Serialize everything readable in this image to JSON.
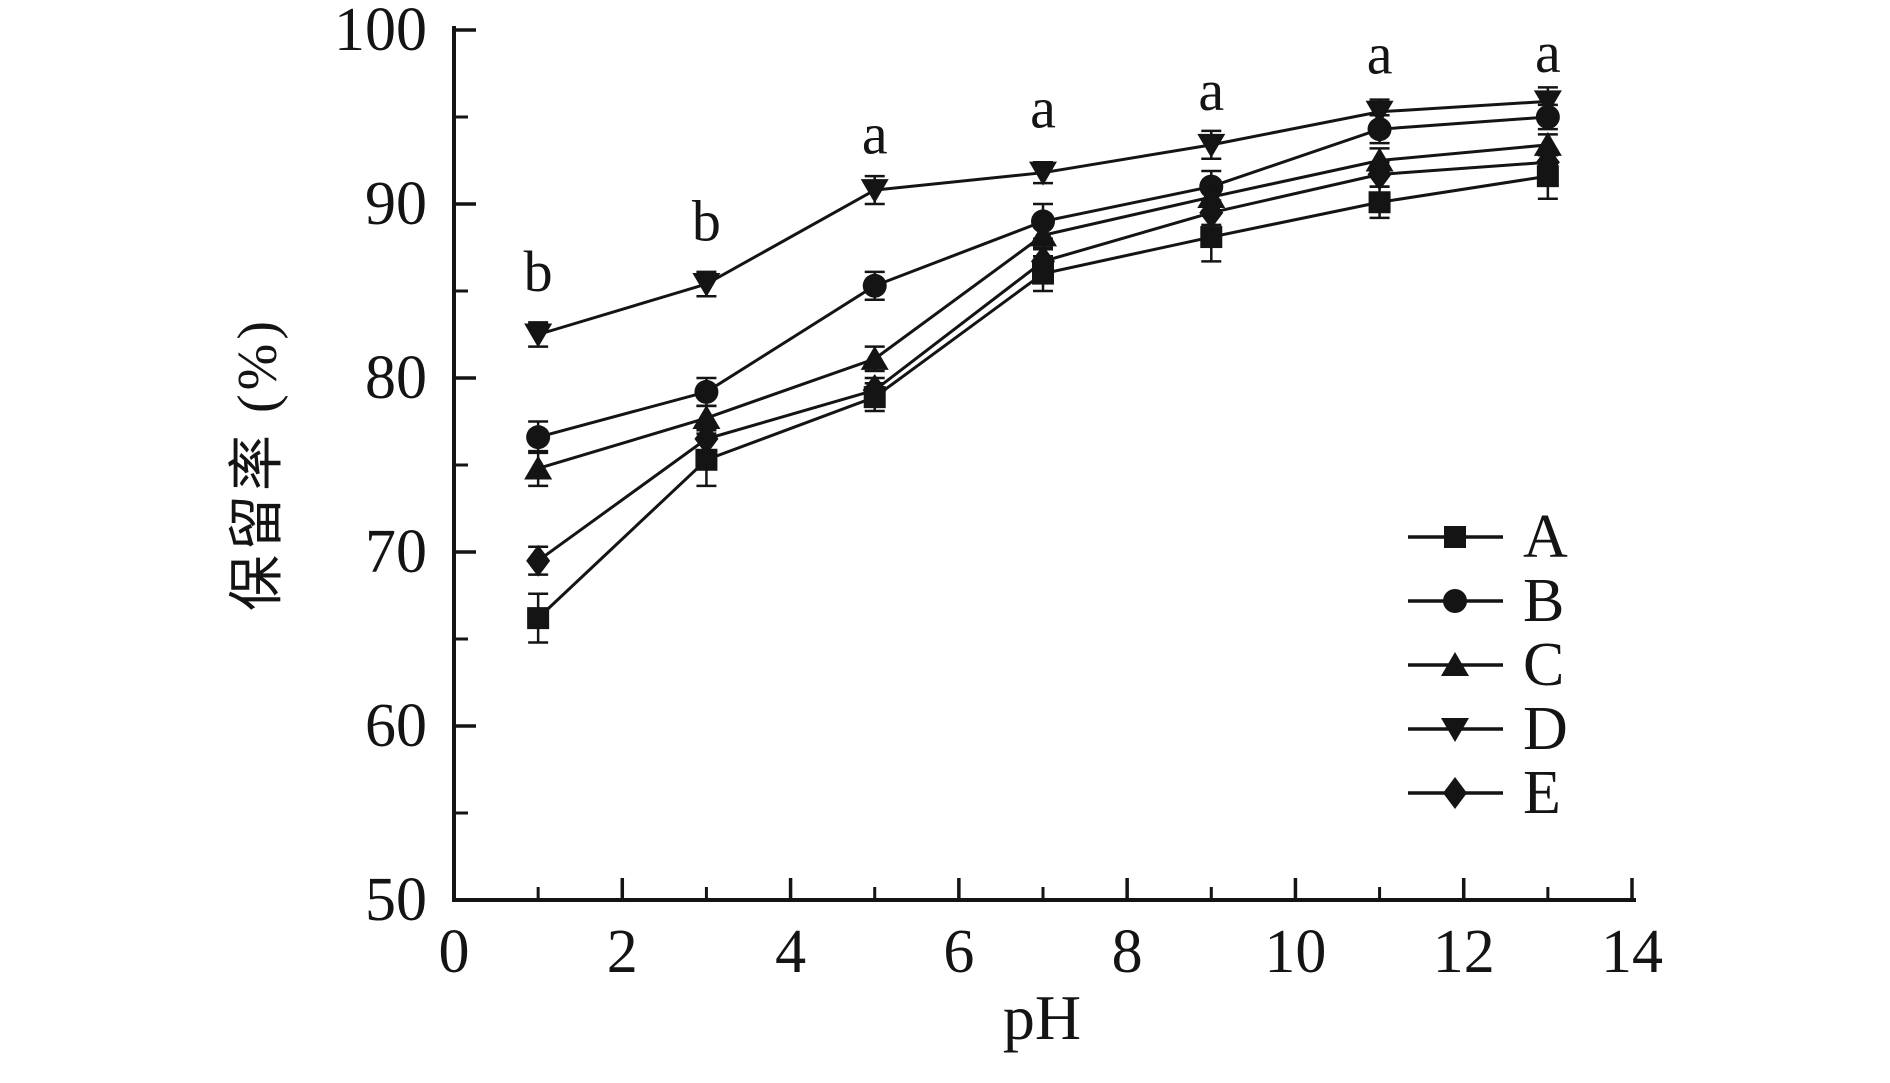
{
  "figure": {
    "background": "#ffffff",
    "ink": "#141414"
  },
  "chart_data": {
    "type": "line",
    "title": "",
    "xlabel": "pH",
    "ylabel": "保留率 (%)",
    "xlim": [
      0,
      14
    ],
    "ylim": [
      50,
      100
    ],
    "grid": false,
    "x_major_ticks": [
      0,
      2,
      4,
      6,
      8,
      10,
      12,
      14
    ],
    "x_minor_ticks": [
      1,
      3,
      5,
      7,
      9,
      11,
      13
    ],
    "y_major_ticks": [
      50,
      60,
      70,
      80,
      90,
      100
    ],
    "y_minor_ticks": [
      55,
      65,
      75,
      85,
      95
    ],
    "x": [
      1,
      3,
      5,
      7,
      9,
      11,
      13
    ],
    "series": [
      {
        "name": "A",
        "marker": "square",
        "values": [
          66.2,
          75.3,
          78.9,
          86.0,
          88.1,
          90.1,
          91.6
        ],
        "errors": [
          1.4,
          1.5,
          0.8,
          1.0,
          1.4,
          0.9,
          1.3
        ]
      },
      {
        "name": "B",
        "marker": "circle",
        "values": [
          76.6,
          79.2,
          85.3,
          89.0,
          91.0,
          94.3,
          95.0
        ],
        "errors": [
          0.9,
          0.8,
          0.8,
          1.0,
          0.9,
          0.8,
          0.7
        ]
      },
      {
        "name": "C",
        "marker": "triangle-up",
        "values": [
          74.8,
          77.7,
          81.1,
          88.2,
          90.4,
          92.5,
          93.4
        ],
        "errors": [
          1.0,
          0.7,
          0.7,
          0.7,
          0.8,
          0.7,
          0.6
        ]
      },
      {
        "name": "D",
        "marker": "triangle-down",
        "values": [
          82.5,
          85.4,
          90.8,
          91.8,
          93.4,
          95.3,
          95.9
        ],
        "errors": [
          0.7,
          0.7,
          0.8,
          0.6,
          0.8,
          0.7,
          0.8
        ]
      },
      {
        "name": "E",
        "marker": "diamond",
        "values": [
          69.5,
          76.5,
          79.3,
          86.7,
          89.5,
          91.7,
          92.4
        ],
        "errors": [
          0.8,
          0.7,
          0.7,
          0.7,
          0.7,
          0.7,
          0.6
        ]
      }
    ],
    "annotations": [
      {
        "text": "b",
        "x": 1,
        "y": 85.0
      },
      {
        "text": "b",
        "x": 3,
        "y": 87.9
      },
      {
        "text": "a",
        "x": 5,
        "y": 92.9
      },
      {
        "text": "a",
        "x": 7,
        "y": 94.4
      },
      {
        "text": "a",
        "x": 9,
        "y": 95.4
      },
      {
        "text": "a",
        "x": 11,
        "y": 97.5
      },
      {
        "text": "a",
        "x": 13,
        "y": 97.6
      }
    ],
    "legend": {
      "position": "inside-right",
      "entries": [
        {
          "label": "A",
          "marker": "square"
        },
        {
          "label": "B",
          "marker": "circle"
        },
        {
          "label": "C",
          "marker": "triangle-up"
        },
        {
          "label": "D",
          "marker": "triangle-down"
        },
        {
          "label": "E",
          "marker": "diamond"
        }
      ]
    }
  }
}
